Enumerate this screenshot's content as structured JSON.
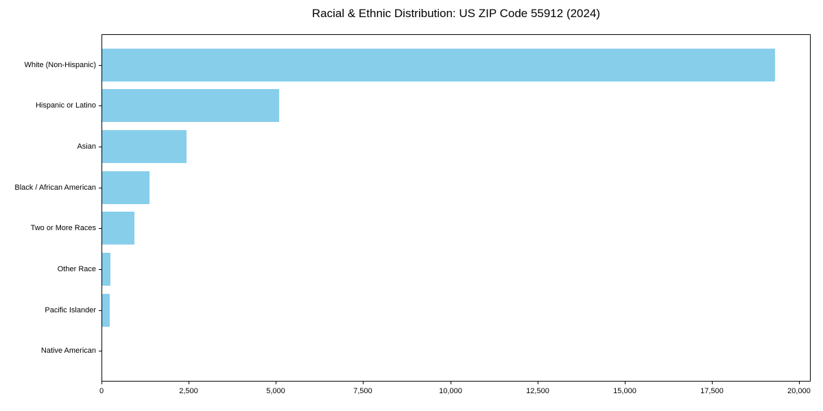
{
  "chart_data": {
    "type": "bar",
    "orientation": "horizontal",
    "title": "Racial & Ethnic Distribution: US ZIP Code 55912 (2024)",
    "categories": [
      "White (Non-Hispanic)",
      "Hispanic or Latino",
      "Asian",
      "Black / African American",
      "Two or More Races",
      "Other Race",
      "Pacific Islander",
      "Native American"
    ],
    "values": [
      19320,
      5100,
      2440,
      1375,
      950,
      260,
      235,
      15
    ],
    "xlabel": "",
    "ylabel": "",
    "xlim": [
      0,
      20333
    ],
    "xticks": [
      0,
      2500,
      5000,
      7500,
      10000,
      12500,
      15000,
      17500,
      20000
    ],
    "xtick_labels": [
      "0",
      "2,500",
      "5,000",
      "7,500",
      "10,000",
      "12,500",
      "15,000",
      "17,500",
      "20,000"
    ],
    "bar_color": "#87CEEB",
    "axis_color": "#000000",
    "text_color": "#000000",
    "background_color": "#ffffff",
    "grid": false,
    "legend": null,
    "value_labels_shown": false
  }
}
